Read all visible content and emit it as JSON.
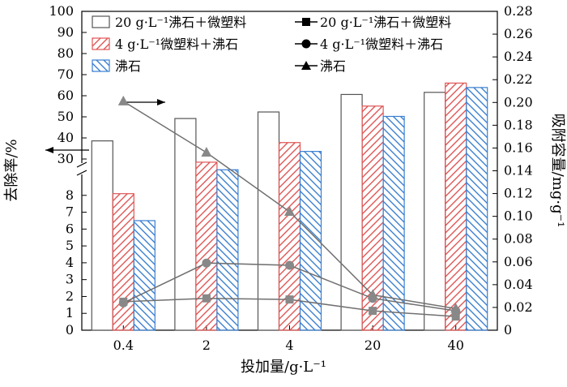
{
  "chart_data": {
    "type": "bar",
    "categories": [
      "0.4",
      "2",
      "4",
      "20",
      "40"
    ],
    "xlabel": "投加量/g·L⁻¹",
    "ylabel_left": "去除率/%",
    "ylabel_right": "吸附容量/mg·g⁻¹",
    "y_left_lower_range": [
      0,
      9
    ],
    "y_left_upper_range": [
      30,
      100
    ],
    "y_left_lower_ticks": [
      "0",
      "1",
      "2",
      "3",
      "4",
      "5",
      "6",
      "7",
      "8"
    ],
    "y_left_upper_ticks": [
      "30",
      "40",
      "50",
      "60",
      "70",
      "80",
      "90",
      "100"
    ],
    "y_right_range": [
      0,
      0.28
    ],
    "y_right_ticks": [
      "0",
      "0.02",
      "0.04",
      "0.06",
      "0.08",
      "0.10",
      "0.12",
      "0.14",
      "0.16",
      "0.18",
      "0.20",
      "0.22",
      "0.24",
      "0.26",
      "0.28"
    ],
    "bar_series": [
      {
        "name": "20 g·L⁻¹沸石＋微塑料",
        "values": [
          38.6,
          49.2,
          52.3,
          60.6,
          61.6
        ],
        "color": "#555555",
        "pattern": "none"
      },
      {
        "name": "4 g·L⁻¹微塑料＋沸石",
        "values": [
          8.1,
          28.5,
          37.8,
          55.1,
          66.0
        ],
        "color": "#e05555",
        "pattern": "hatch"
      },
      {
        "name": "沸石",
        "values": [
          6.5,
          24.9,
          33.6,
          50.2,
          63.9
        ],
        "color": "#3a7fd0",
        "pattern": "backhatch"
      }
    ],
    "line_series": [
      {
        "name": "20 g·L⁻¹沸石＋微塑料",
        "marker": "square",
        "values": [
          0.025,
          0.028,
          0.027,
          0.017,
          0.012
        ]
      },
      {
        "name": "4 g·L⁻¹微塑料＋沸石",
        "marker": "circle",
        "values": [
          0.024,
          0.059,
          0.057,
          0.028,
          0.017
        ]
      },
      {
        "name": "沸石",
        "marker": "triangle",
        "values": [
          0.201,
          0.156,
          0.104,
          0.031,
          0.019
        ]
      }
    ],
    "line_color": "#707070",
    "marker_color": "#888888"
  }
}
